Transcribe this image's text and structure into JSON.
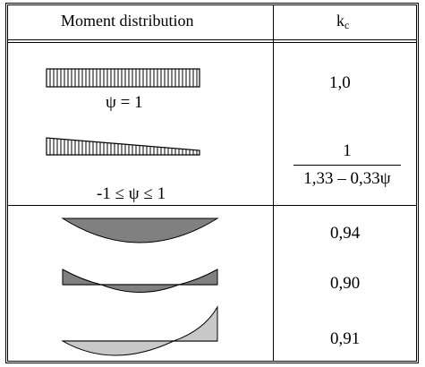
{
  "table": {
    "headers": {
      "moment": "Moment distribution",
      "kc_main": "k",
      "kc_sub": "c"
    },
    "rows": [
      {
        "diagram": "uniform-moment-hatched-rectangle",
        "label": "ψ = 1",
        "kc": "1,0"
      },
      {
        "diagram": "linear-moment-hatched-trapezoid",
        "label": "-1 ≤ ψ ≤ 1",
        "kc_numerator": "1",
        "kc_denominator": "1,33 – 0,33ψ"
      },
      {
        "diagram": "parabolic-moment-dark-fill",
        "kc": "0,94"
      },
      {
        "diagram": "parabolic-moment-with-end-moments-dark-fill",
        "kc": "0,90"
      },
      {
        "diagram": "parabolic-moment-with-one-end-moment-light-fill",
        "kc": "0,91"
      }
    ]
  },
  "colors": {
    "dark_fill": "#808080",
    "light_fill": "#c8c8c8",
    "line": "#000000"
  }
}
